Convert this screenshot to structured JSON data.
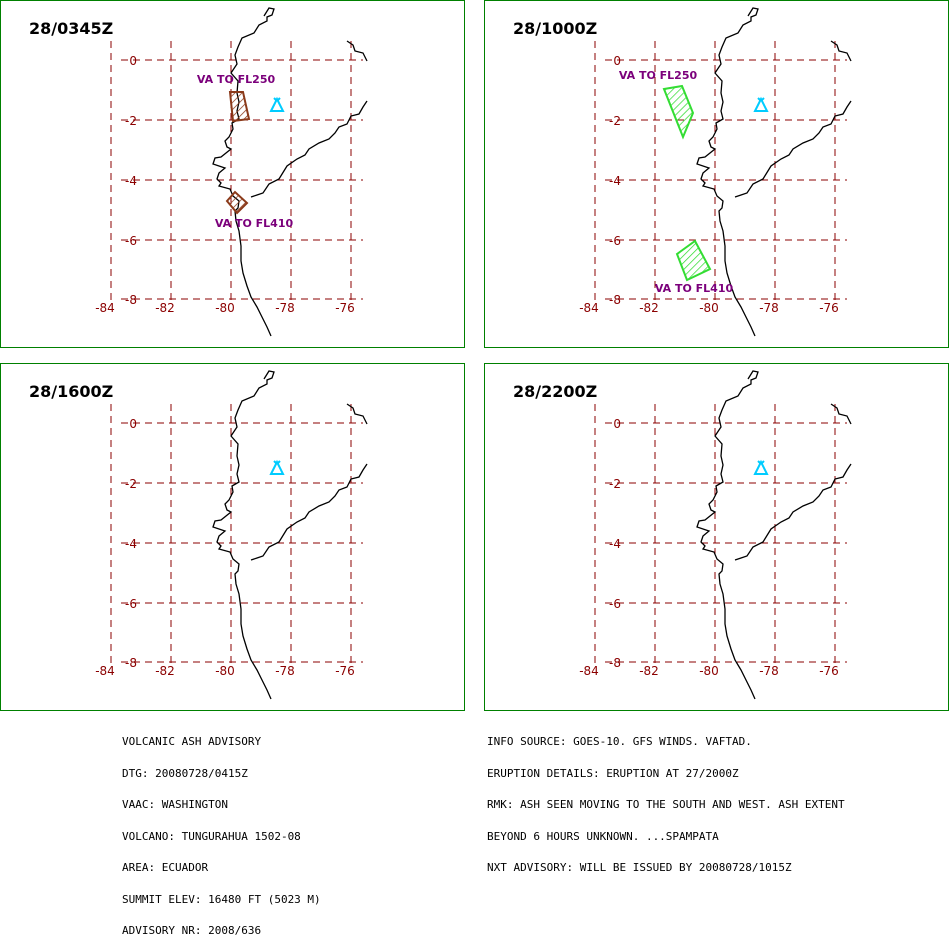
{
  "panels": [
    {
      "title": "28/0345Z",
      "areas": [
        {
          "label": "VA TO FL250",
          "color": "#8B3A1A"
        },
        {
          "label": "VA TO FL410",
          "color": "#8B3A1A"
        }
      ]
    },
    {
      "title": "28/1000Z",
      "areas": [
        {
          "label": "VA TO FL250",
          "color": "#33DD33"
        },
        {
          "label": "VA TO FL410",
          "color": "#33DD33"
        }
      ]
    },
    {
      "title": "28/1600Z",
      "areas": []
    },
    {
      "title": "28/2200Z",
      "areas": []
    }
  ],
  "axes": {
    "lon_labels": [
      "-84",
      "-82",
      "-80",
      "-78",
      "-76"
    ],
    "lat_labels": [
      "0",
      "-2",
      "-4",
      "-6",
      "-8"
    ]
  },
  "colors": {
    "border": "#008000",
    "grid": "#8B0000",
    "label": "#7B007B",
    "volcano": "#00CCFF",
    "coast": "#000000"
  },
  "volcano_icon": "volcano-triangle-icon",
  "advisory_left": [
    "VOLCANIC ASH ADVISORY",
    "DTG: 20080728/0415Z",
    "VAAC: WASHINGTON",
    "VOLCANO: TUNGURAHUA 1502-08",
    "AREA: ECUADOR",
    "SUMMIT ELEV: 16480 FT (5023 M)",
    "ADVISORY NR: 2008/636"
  ],
  "advisory_right": [
    "INFO SOURCE: GOES-10. GFS WINDS. VAFTAD.",
    "ERUPTION DETAILS: ERUPTION AT 27/2000Z",
    "RMK: ASH SEEN MOVING TO THE SOUTH AND WEST. ASH EXTENT",
    "BEYOND 6 HOURS UNKNOWN. ...SPAMPATA",
    "NXT ADVISORY: WILL BE ISSUED BY 20080728/1015Z"
  ]
}
